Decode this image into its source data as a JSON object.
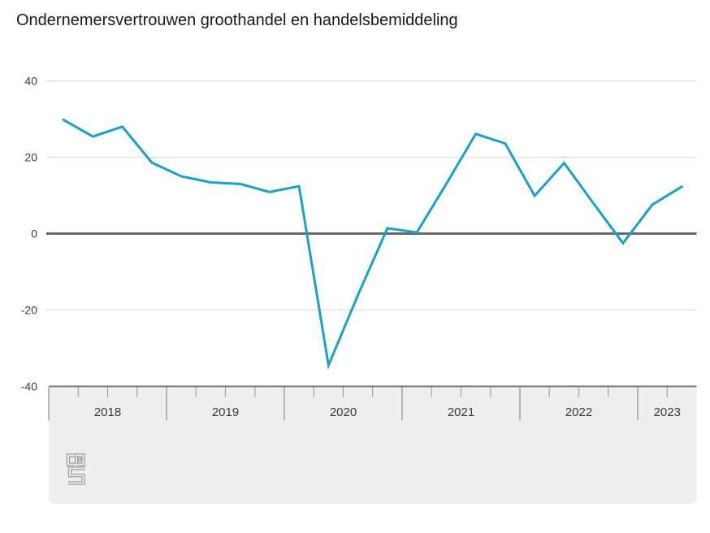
{
  "title": "Ondernemersvertrouwen groothandel en handelsbemiddeling",
  "colors": {
    "line": "#19A1CB",
    "grid": "#d9d9d9",
    "zero_line": "#696969",
    "band_fill": "#eeeeee",
    "band_top_border": "#757575",
    "tick_long": "#8e8e8e",
    "tick_short": "#a3a3a3",
    "axis_text": "#3a3a3a",
    "title_text": "#191919",
    "logo": "#9c9c9c"
  },
  "chart_data": {
    "type": "line",
    "title": "Ondernemersvertrouwen groothandel en handelsbemiddeling",
    "x": [
      "2018 Q1",
      "2018 Q2",
      "2018 Q3",
      "2018 Q4",
      "2019 Q1",
      "2019 Q2",
      "2019 Q3",
      "2019 Q4",
      "2020 Q1",
      "2020 Q2",
      "2020 Q3",
      "2020 Q4",
      "2021 Q1",
      "2021 Q2",
      "2021 Q3",
      "2021 Q4",
      "2022 Q1",
      "2022 Q2",
      "2022 Q3",
      "2022 Q4",
      "2023 Q1",
      "2023 Q2"
    ],
    "values": [
      29.8,
      25.4,
      28.0,
      18.6,
      15.0,
      13.4,
      13.0,
      10.9,
      12.4,
      -34.5,
      -16.1,
      1.4,
      0.3,
      13.0,
      26.1,
      23.6,
      9.9,
      18.5,
      7.9,
      -2.5,
      7.6,
      12.3
    ],
    "year_labels": [
      "2018",
      "2019",
      "2020",
      "2021",
      "2022",
      "2023"
    ],
    "quarters_shown_per_year": [
      4,
      4,
      4,
      4,
      4,
      2
    ],
    "y_ticks": [
      40,
      20,
      0,
      -20,
      -40
    ],
    "ylim": [
      -40,
      40
    ],
    "xlabel": "",
    "ylabel": "",
    "grid": "horizontal-only",
    "legend": "none"
  },
  "footer": {
    "logo_name": "cbs-logo"
  }
}
